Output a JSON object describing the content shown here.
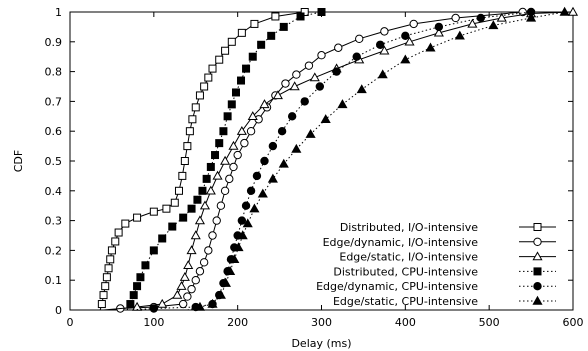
{
  "chart_data": {
    "type": "line",
    "xlabel": "Delay (ms)",
    "ylabel": "CDF",
    "xlim": [
      0,
      600
    ],
    "ylim": [
      0,
      1
    ],
    "xticks": [
      0,
      100,
      200,
      300,
      400,
      500,
      600
    ],
    "yticks": [
      0,
      0.1,
      0.2,
      0.3,
      0.4,
      0.5,
      0.6,
      0.7,
      0.8,
      0.9,
      1
    ],
    "grid": false,
    "legend_position": "bottom-right",
    "series": [
      {
        "name": "Distributed, I/O-intensive",
        "line_style": "solid",
        "marker": "square-open",
        "points": [
          [
            36,
            0
          ],
          [
            38,
            0.02
          ],
          [
            40,
            0.05
          ],
          [
            42,
            0.08
          ],
          [
            44,
            0.11
          ],
          [
            46,
            0.14
          ],
          [
            48,
            0.17
          ],
          [
            50,
            0.2
          ],
          [
            54,
            0.23
          ],
          [
            58,
            0.26
          ],
          [
            66,
            0.29
          ],
          [
            80,
            0.31
          ],
          [
            100,
            0.33
          ],
          [
            115,
            0.34
          ],
          [
            125,
            0.36
          ],
          [
            130,
            0.4
          ],
          [
            134,
            0.45
          ],
          [
            137,
            0.5
          ],
          [
            140,
            0.55
          ],
          [
            143,
            0.6
          ],
          [
            146,
            0.64
          ],
          [
            150,
            0.68
          ],
          [
            155,
            0.72
          ],
          [
            160,
            0.75
          ],
          [
            165,
            0.78
          ],
          [
            170,
            0.81
          ],
          [
            178,
            0.84
          ],
          [
            185,
            0.87
          ],
          [
            193,
            0.9
          ],
          [
            205,
            0.93
          ],
          [
            220,
            0.96
          ],
          [
            245,
            0.985
          ],
          [
            280,
            1
          ]
        ]
      },
      {
        "name": "Edge/dynamic, I/O-intensive",
        "line_style": "solid",
        "marker": "circle-open",
        "points": [
          [
            50,
            0
          ],
          [
            60,
            0.005
          ],
          [
            100,
            0.01
          ],
          [
            135,
            0.02
          ],
          [
            140,
            0.045
          ],
          [
            145,
            0.07
          ],
          [
            150,
            0.1
          ],
          [
            155,
            0.13
          ],
          [
            160,
            0.16
          ],
          [
            165,
            0.2
          ],
          [
            170,
            0.25
          ],
          [
            175,
            0.3
          ],
          [
            180,
            0.35
          ],
          [
            185,
            0.4
          ],
          [
            190,
            0.44
          ],
          [
            195,
            0.48
          ],
          [
            200,
            0.52
          ],
          [
            208,
            0.56
          ],
          [
            216,
            0.6
          ],
          [
            225,
            0.64
          ],
          [
            235,
            0.68
          ],
          [
            245,
            0.72
          ],
          [
            257,
            0.76
          ],
          [
            270,
            0.79
          ],
          [
            285,
            0.82
          ],
          [
            300,
            0.855
          ],
          [
            320,
            0.88
          ],
          [
            345,
            0.91
          ],
          [
            375,
            0.935
          ],
          [
            410,
            0.96
          ],
          [
            460,
            0.98
          ],
          [
            540,
            1
          ]
        ]
      },
      {
        "name": "Edge/static, I/O-intensive",
        "line_style": "solid",
        "marker": "triangle-open",
        "points": [
          [
            40,
            0
          ],
          [
            80,
            0.01
          ],
          [
            110,
            0.02
          ],
          [
            128,
            0.05
          ],
          [
            133,
            0.08
          ],
          [
            137,
            0.11
          ],
          [
            141,
            0.15
          ],
          [
            145,
            0.2
          ],
          [
            150,
            0.25
          ],
          [
            155,
            0.3
          ],
          [
            161,
            0.35
          ],
          [
            168,
            0.4
          ],
          [
            176,
            0.45
          ],
          [
            185,
            0.5
          ],
          [
            195,
            0.55
          ],
          [
            205,
            0.6
          ],
          [
            218,
            0.65
          ],
          [
            232,
            0.69
          ],
          [
            248,
            0.72
          ],
          [
            268,
            0.75
          ],
          [
            292,
            0.78
          ],
          [
            318,
            0.81
          ],
          [
            345,
            0.84
          ],
          [
            375,
            0.87
          ],
          [
            405,
            0.9
          ],
          [
            440,
            0.93
          ],
          [
            480,
            0.96
          ],
          [
            515,
            0.98
          ],
          [
            550,
            0.995
          ],
          [
            600,
            1
          ]
        ]
      },
      {
        "name": "Distributed, CPU-intensive",
        "line_style": "dotted",
        "marker": "square-filled",
        "points": [
          [
            68,
            0
          ],
          [
            72,
            0.02
          ],
          [
            76,
            0.05
          ],
          [
            80,
            0.08
          ],
          [
            84,
            0.11
          ],
          [
            90,
            0.15
          ],
          [
            100,
            0.2
          ],
          [
            110,
            0.24
          ],
          [
            122,
            0.28
          ],
          [
            135,
            0.31
          ],
          [
            145,
            0.34
          ],
          [
            152,
            0.37
          ],
          [
            158,
            0.4
          ],
          [
            163,
            0.44
          ],
          [
            168,
            0.48
          ],
          [
            173,
            0.52
          ],
          [
            178,
            0.56
          ],
          [
            183,
            0.6
          ],
          [
            188,
            0.65
          ],
          [
            193,
            0.69
          ],
          [
            198,
            0.73
          ],
          [
            204,
            0.77
          ],
          [
            210,
            0.81
          ],
          [
            218,
            0.85
          ],
          [
            228,
            0.89
          ],
          [
            240,
            0.92
          ],
          [
            255,
            0.95
          ],
          [
            275,
            0.985
          ],
          [
            300,
            1
          ]
        ]
      },
      {
        "name": "Edge/dynamic, CPU-intensive",
        "line_style": "dotted",
        "marker": "circle-filled",
        "points": [
          [
            70,
            0
          ],
          [
            100,
            0.005
          ],
          [
            150,
            0.01
          ],
          [
            170,
            0.02
          ],
          [
            178,
            0.05
          ],
          [
            183,
            0.09
          ],
          [
            188,
            0.13
          ],
          [
            192,
            0.17
          ],
          [
            196,
            0.21
          ],
          [
            200,
            0.25
          ],
          [
            205,
            0.3
          ],
          [
            210,
            0.35
          ],
          [
            216,
            0.4
          ],
          [
            223,
            0.45
          ],
          [
            232,
            0.5
          ],
          [
            242,
            0.55
          ],
          [
            253,
            0.6
          ],
          [
            265,
            0.65
          ],
          [
            280,
            0.7
          ],
          [
            298,
            0.75
          ],
          [
            318,
            0.8
          ],
          [
            342,
            0.85
          ],
          [
            370,
            0.89
          ],
          [
            400,
            0.92
          ],
          [
            440,
            0.95
          ],
          [
            490,
            0.98
          ],
          [
            550,
            1
          ]
        ]
      },
      {
        "name": "Edge/static, CPU-intensive",
        "line_style": "dotted",
        "marker": "triangle-filled",
        "points": [
          [
            140,
            0
          ],
          [
            155,
            0.01
          ],
          [
            170,
            0.02
          ],
          [
            180,
            0.05
          ],
          [
            186,
            0.09
          ],
          [
            191,
            0.13
          ],
          [
            196,
            0.17
          ],
          [
            201,
            0.21
          ],
          [
            206,
            0.25
          ],
          [
            212,
            0.29
          ],
          [
            220,
            0.34
          ],
          [
            230,
            0.39
          ],
          [
            242,
            0.44
          ],
          [
            255,
            0.49
          ],
          [
            270,
            0.54
          ],
          [
            287,
            0.59
          ],
          [
            305,
            0.64
          ],
          [
            325,
            0.69
          ],
          [
            348,
            0.74
          ],
          [
            373,
            0.79
          ],
          [
            400,
            0.84
          ],
          [
            430,
            0.88
          ],
          [
            465,
            0.92
          ],
          [
            505,
            0.955
          ],
          [
            550,
            0.98
          ],
          [
            590,
            1
          ]
        ]
      }
    ]
  }
}
